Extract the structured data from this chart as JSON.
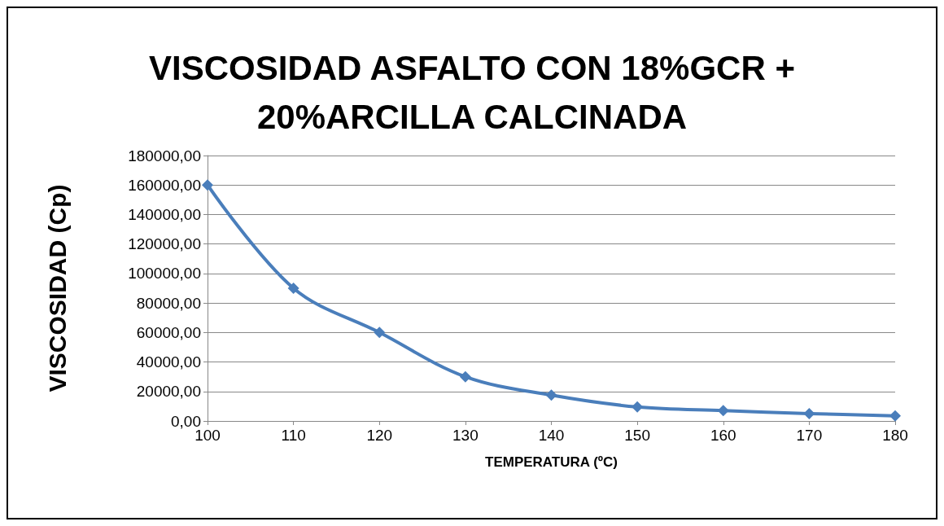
{
  "chart_data": {
    "type": "line",
    "title": "VISCOSIDAD ASFALTO CON 18%GCR +\n20%ARCILLA CALCINADA",
    "xlabel": "TEMPERATURA (ºC)",
    "ylabel": "VISCOSIDAD (Cp)",
    "x": [
      100,
      110,
      120,
      130,
      140,
      150,
      160,
      170,
      180
    ],
    "series": [
      {
        "color": "#4a7ebb",
        "values": [
          160000,
          90000,
          60000,
          30000,
          17500,
          9500,
          7000,
          5000,
          3500
        ]
      }
    ],
    "xlim": [
      100,
      180
    ],
    "xticks": [
      100,
      110,
      120,
      130,
      140,
      150,
      160,
      170,
      180
    ],
    "ylim": [
      0,
      180000
    ],
    "yticks": [
      {
        "value": 0,
        "label": "0,00"
      },
      {
        "value": 20000,
        "label": "20000,00"
      },
      {
        "value": 40000,
        "label": "40000,00"
      },
      {
        "value": 60000,
        "label": "60000,00"
      },
      {
        "value": 80000,
        "label": "80000,00"
      },
      {
        "value": 100000,
        "label": "100000,00"
      },
      {
        "value": 120000,
        "label": "120000,00"
      },
      {
        "value": 140000,
        "label": "140000,00"
      },
      {
        "value": 160000,
        "label": "160000,00"
      },
      {
        "value": 180000,
        "label": "180000,00"
      }
    ],
    "grid": "y",
    "marker": "diamond",
    "line_style": "solid"
  }
}
